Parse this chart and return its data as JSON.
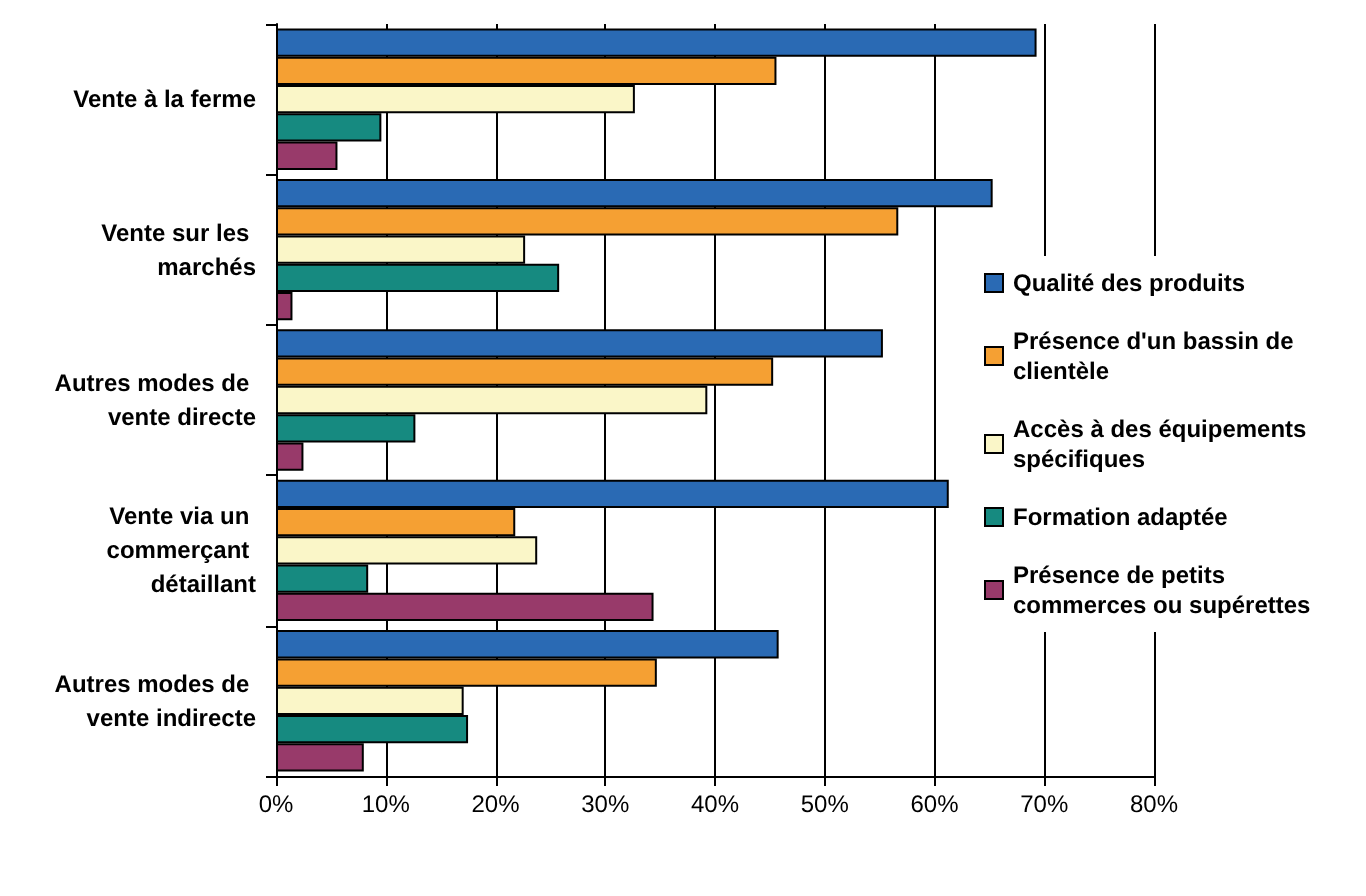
{
  "chart_data": {
    "type": "bar",
    "orientation": "horizontal",
    "categories": [
      "Vente à la ferme",
      "Vente sur les marchés",
      "Autres modes de vente directe",
      "Vente via un commerçant détaillant",
      "Autres modes de vente indirecte"
    ],
    "series": [
      {
        "name": "Qualité des produits",
        "color": "#2a6ab4",
        "values": [
          69.3,
          65.3,
          55.3,
          61.3,
          45.8
        ]
      },
      {
        "name": "Présence d'un bassin de clientèle",
        "color": "#f5a033",
        "values": [
          45.6,
          56.7,
          45.3,
          21.8,
          34.7
        ]
      },
      {
        "name": "Accès à des équipements spécifiques",
        "color": "#faf6c8",
        "values": [
          32.7,
          22.7,
          39.3,
          23.8,
          17.1
        ]
      },
      {
        "name": "Formation adaptée",
        "color": "#168a80",
        "values": [
          9.6,
          25.8,
          12.7,
          8.4,
          17.5
        ]
      },
      {
        "name": "Présence de petits commerces ou supérettes",
        "color": "#983a6a",
        "values": [
          5.6,
          1.5,
          2.5,
          34.4,
          8
        ]
      }
    ],
    "xlim": [
      0,
      80
    ],
    "xticks": [
      {
        "value": 0,
        "label": "0%"
      },
      {
        "value": 10,
        "label": "10%"
      },
      {
        "value": 20,
        "label": "20%"
      },
      {
        "value": 30,
        "label": "30%"
      },
      {
        "value": 40,
        "label": "40%"
      },
      {
        "value": 50,
        "label": "50%"
      },
      {
        "value": 60,
        "label": "60%"
      },
      {
        "value": 70,
        "label": "70%"
      },
      {
        "value": 80,
        "label": "80%"
      }
    ],
    "grid": "x",
    "legend": "right"
  }
}
